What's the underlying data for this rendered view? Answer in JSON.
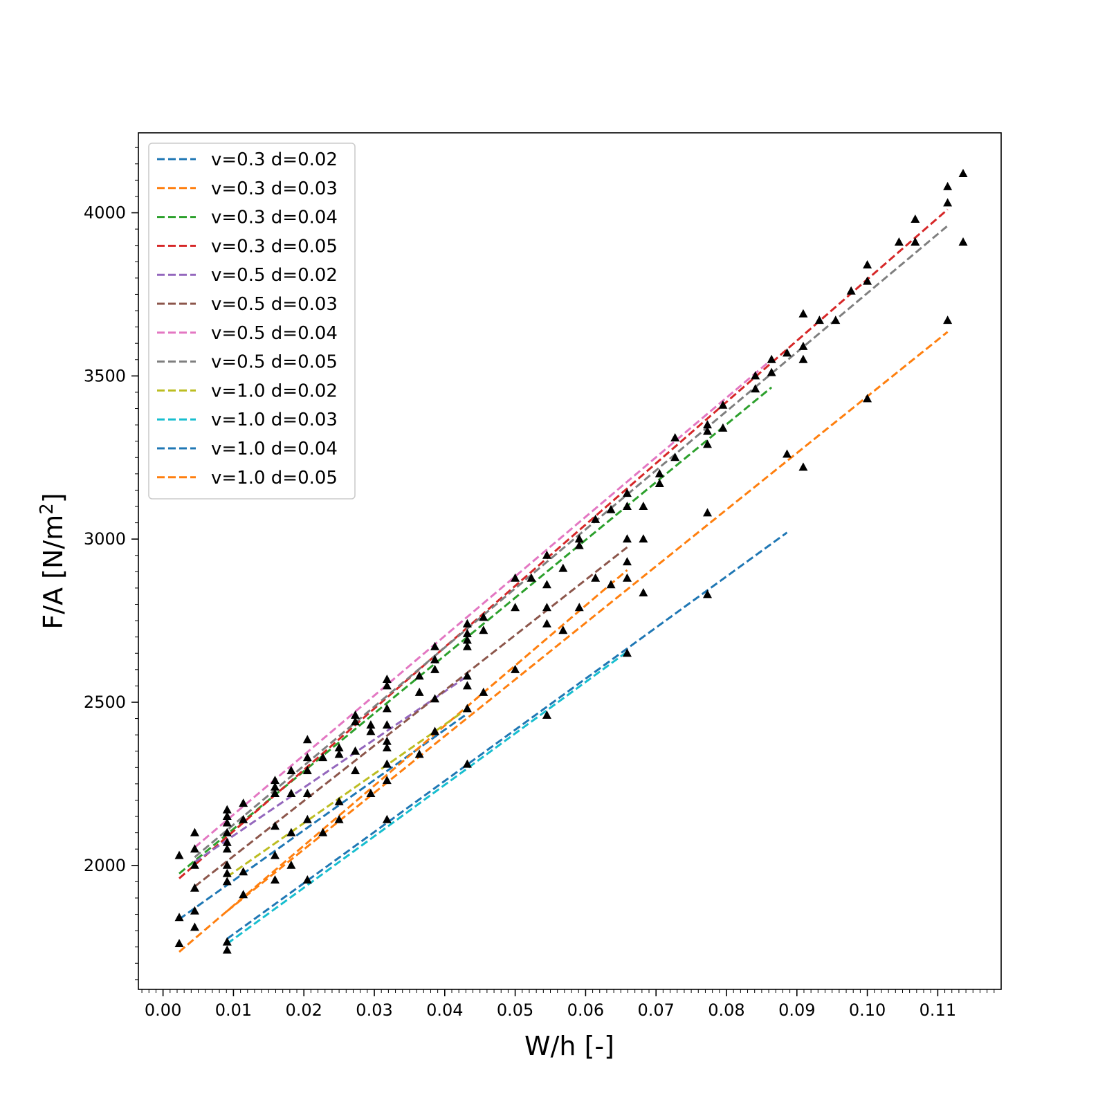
{
  "chart_data": {
    "type": "scatter",
    "title": "",
    "xlabel": "W/h [-]",
    "ylabel_main": "F/A [N/m",
    "ylabel_sup": "2",
    "ylabel_end": "]",
    "xlim": [
      -0.0035,
      0.119
    ],
    "ylim": [
      1620,
      4245
    ],
    "xticks": [
      0.0,
      0.01,
      0.02,
      0.03,
      0.04,
      0.05,
      0.06,
      0.07,
      0.08,
      0.09,
      0.1,
      0.11
    ],
    "xtick_labels": [
      "0.00",
      "0.01",
      "0.02",
      "0.03",
      "0.04",
      "0.05",
      "0.06",
      "0.07",
      "0.08",
      "0.09",
      "0.10",
      "0.11"
    ],
    "yticks": [
      2000,
      2500,
      3000,
      3500,
      4000
    ],
    "ytick_labels": [
      "2000",
      "2500",
      "3000",
      "3500",
      "4000"
    ],
    "legend_position": "top-left",
    "marker_color": "#000000",
    "series": [
      {
        "name": "v=0.3 d=0.02",
        "color": "#1f77b4",
        "x": [
          0.0023,
          0.0432
        ],
        "y": [
          1835,
          2465
        ]
      },
      {
        "name": "v=0.3 d=0.03",
        "color": "#ff7f0e",
        "x": [
          0.0023,
          0.0659
        ],
        "y": [
          1735,
          2905
        ]
      },
      {
        "name": "v=0.3 d=0.04",
        "color": "#2ca02c",
        "x": [
          0.0023,
          0.0864
        ],
        "y": [
          1975,
          3465
        ]
      },
      {
        "name": "v=0.3 d=0.05",
        "color": "#d62728",
        "x": [
          0.0023,
          0.1114
        ],
        "y": [
          1960,
          4010
        ]
      },
      {
        "name": "v=0.5 d=0.02",
        "color": "#9467bd",
        "x": [
          0.0045,
          0.0432
        ],
        "y": [
          2010,
          2580
        ]
      },
      {
        "name": "v=0.5 d=0.03",
        "color": "#8c564b",
        "x": [
          0.0045,
          0.0659
        ],
        "y": [
          1935,
          2975
        ]
      },
      {
        "name": "v=0.5 d=0.04",
        "color": "#e377c2",
        "x": [
          0.0045,
          0.0864
        ],
        "y": [
          2055,
          3550
        ]
      },
      {
        "name": "v=0.5 d=0.05",
        "color": "#7f7f7f",
        "x": [
          0.0045,
          0.1114
        ],
        "y": [
          2025,
          3960
        ]
      },
      {
        "name": "v=1.0 d=0.02",
        "color": "#bcbd22",
        "x": [
          0.0091,
          0.0432
        ],
        "y": [
          1965,
          2480
        ]
      },
      {
        "name": "v=1.0 d=0.03",
        "color": "#17becf",
        "x": [
          0.0091,
          0.0659
        ],
        "y": [
          1760,
          2655
        ]
      },
      {
        "name": "v=1.0 d=0.04",
        "color": "#1f77b4",
        "x": [
          0.0091,
          0.0886
        ],
        "y": [
          1775,
          3020
        ]
      },
      {
        "name": "v=1.0 d=0.05",
        "color": "#ff7f0e",
        "x": [
          0.0091,
          0.1114
        ],
        "y": [
          1860,
          3635
        ]
      }
    ],
    "points": {
      "x": [
        0.0023,
        0.0023,
        0.0023,
        0.0045,
        0.0045,
        0.0045,
        0.0045,
        0.0045,
        0.0045,
        0.0091,
        0.0091,
        0.0091,
        0.0091,
        0.0091,
        0.0091,
        0.0091,
        0.0091,
        0.0091,
        0.0091,
        0.0091,
        0.0114,
        0.0114,
        0.0114,
        0.0114,
        0.0159,
        0.0159,
        0.0159,
        0.0159,
        0.0159,
        0.0159,
        0.0182,
        0.0182,
        0.0182,
        0.0182,
        0.0205,
        0.0205,
        0.0205,
        0.0205,
        0.0205,
        0.0205,
        0.0227,
        0.0227,
        0.025,
        0.025,
        0.025,
        0.025,
        0.0273,
        0.0273,
        0.0273,
        0.0273,
        0.0295,
        0.0295,
        0.0295,
        0.0318,
        0.0318,
        0.0318,
        0.0318,
        0.0318,
        0.0318,
        0.0318,
        0.0318,
        0.0318,
        0.0364,
        0.0364,
        0.0364,
        0.0386,
        0.0386,
        0.0386,
        0.0386,
        0.0386,
        0.0432,
        0.0432,
        0.0432,
        0.0432,
        0.0432,
        0.0432,
        0.0432,
        0.0432,
        0.0455,
        0.0455,
        0.0455,
        0.05,
        0.05,
        0.05,
        0.0523,
        0.0545,
        0.0545,
        0.0545,
        0.0545,
        0.0545,
        0.0568,
        0.0568,
        0.0591,
        0.0591,
        0.0591,
        0.0614,
        0.0614,
        0.0636,
        0.0636,
        0.0659,
        0.0659,
        0.0659,
        0.0659,
        0.0659,
        0.0659,
        0.0682,
        0.0682,
        0.0682,
        0.0705,
        0.0705,
        0.0727,
        0.0727,
        0.0773,
        0.0773,
        0.0773,
        0.0773,
        0.0773,
        0.0795,
        0.0795,
        0.0841,
        0.0841,
        0.0864,
        0.0864,
        0.0886,
        0.0886,
        0.0909,
        0.0909,
        0.0909,
        0.0909,
        0.0932,
        0.0955,
        0.0977,
        0.1,
        0.1,
        0.1,
        0.1045,
        0.1068,
        0.1068,
        0.1114,
        0.1114,
        0.1114,
        0.1136,
        0.1136
      ],
      "y": [
        2030,
        1840,
        1760,
        2100,
        2050,
        2000,
        1930,
        1860,
        1810,
        2170,
        2150,
        2130,
        2100,
        2070,
        2050,
        2000,
        1975,
        1950,
        1765,
        1740,
        2190,
        2140,
        1980,
        1910,
        2260,
        2240,
        2220,
        2120,
        2030,
        1955,
        2290,
        2220,
        2100,
        2000,
        2385,
        2330,
        2290,
        2220,
        2140,
        1955,
        2330,
        2100,
        2360,
        2340,
        2195,
        2140,
        2460,
        2440,
        2350,
        2290,
        2430,
        2410,
        2220,
        2570,
        2550,
        2480,
        2430,
        2380,
        2360,
        2310,
        2260,
        2140,
        2580,
        2530,
        2340,
        2670,
        2630,
        2600,
        2510,
        2410,
        2740,
        2710,
        2690,
        2670,
        2580,
        2550,
        2480,
        2310,
        2760,
        2720,
        2530,
        2880,
        2790,
        2600,
        2880,
        2950,
        2860,
        2790,
        2740,
        2460,
        2910,
        2720,
        3000,
        2980,
        2790,
        3060,
        2880,
        3090,
        2860,
        3140,
        3100,
        3000,
        2930,
        2880,
        2650,
        3100,
        3000,
        2835,
        3200,
        3170,
        3310,
        3250,
        3350,
        3330,
        3290,
        3080,
        2830,
        3410,
        3340,
        3500,
        3460,
        3550,
        3510,
        3570,
        3260,
        3690,
        3590,
        3550,
        3220,
        3670,
        3670,
        3760,
        3840,
        3790,
        3430,
        3910,
        3980,
        3910,
        4080,
        4030,
        3670,
        4120,
        3910
      ]
    }
  }
}
